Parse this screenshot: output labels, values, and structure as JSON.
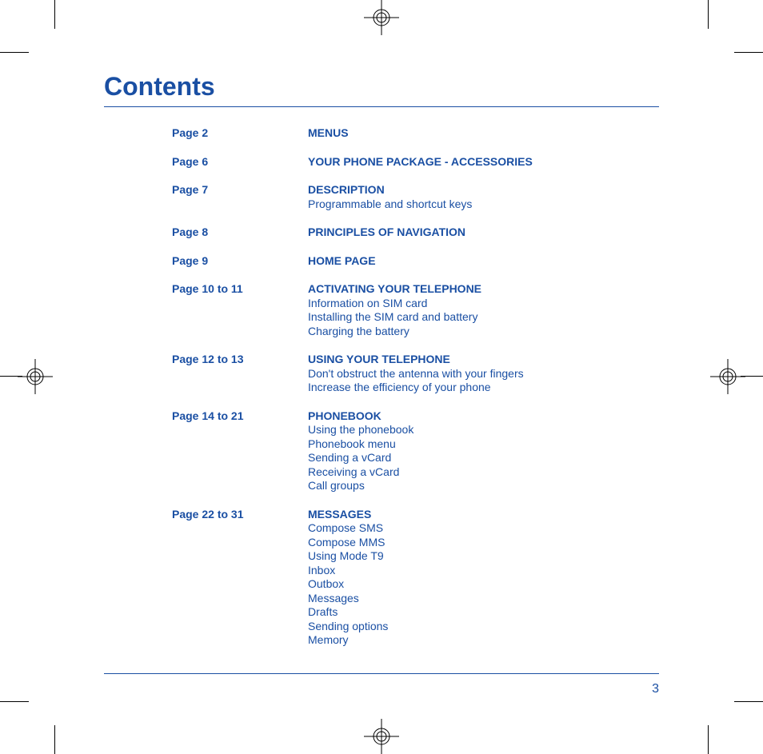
{
  "page": {
    "title": "Contents",
    "page_number": "3",
    "accent_color": "#1a4fa3",
    "background_color": "#ffffff",
    "title_fontsize": 32,
    "body_fontsize": 14
  },
  "toc": [
    {
      "page": "Page 2",
      "heading": "MENUS",
      "subs": []
    },
    {
      "page": "Page 6",
      "heading": "YOUR PHONE PACKAGE - ACCESSORIES",
      "subs": []
    },
    {
      "page": "Page 7",
      "heading": "DESCRIPTION",
      "subs": [
        "Programmable and shortcut keys"
      ]
    },
    {
      "page": "Page 8",
      "heading": "PRINCIPLES OF NAVIGATION",
      "subs": []
    },
    {
      "page": "Page 9",
      "heading": "HOME PAGE",
      "subs": []
    },
    {
      "page": "Page 10 to 11",
      "heading": "ACTIVATING YOUR TELEPHONE",
      "subs": [
        "Information on SIM card",
        "Installing the SIM card and battery",
        "Charging the battery"
      ]
    },
    {
      "page": "Page 12 to 13",
      "heading": "USING YOUR TELEPHONE",
      "subs": [
        "Don't obstruct the antenna with your fingers",
        "Increase the efficiency of your phone"
      ]
    },
    {
      "page": "Page 14 to 21",
      "heading": "PHONEBOOK",
      "subs": [
        "Using the phonebook",
        "Phonebook menu",
        "Sending a vCard",
        "Receiving a vCard",
        "Call groups"
      ]
    },
    {
      "page": "Page 22 to 31",
      "heading": "MESSAGES",
      "subs": [
        "Compose SMS",
        "Compose MMS",
        "Using Mode T9",
        "Inbox",
        "Outbox",
        "Messages",
        "Drafts",
        "Sending options",
        "Memory"
      ]
    }
  ]
}
